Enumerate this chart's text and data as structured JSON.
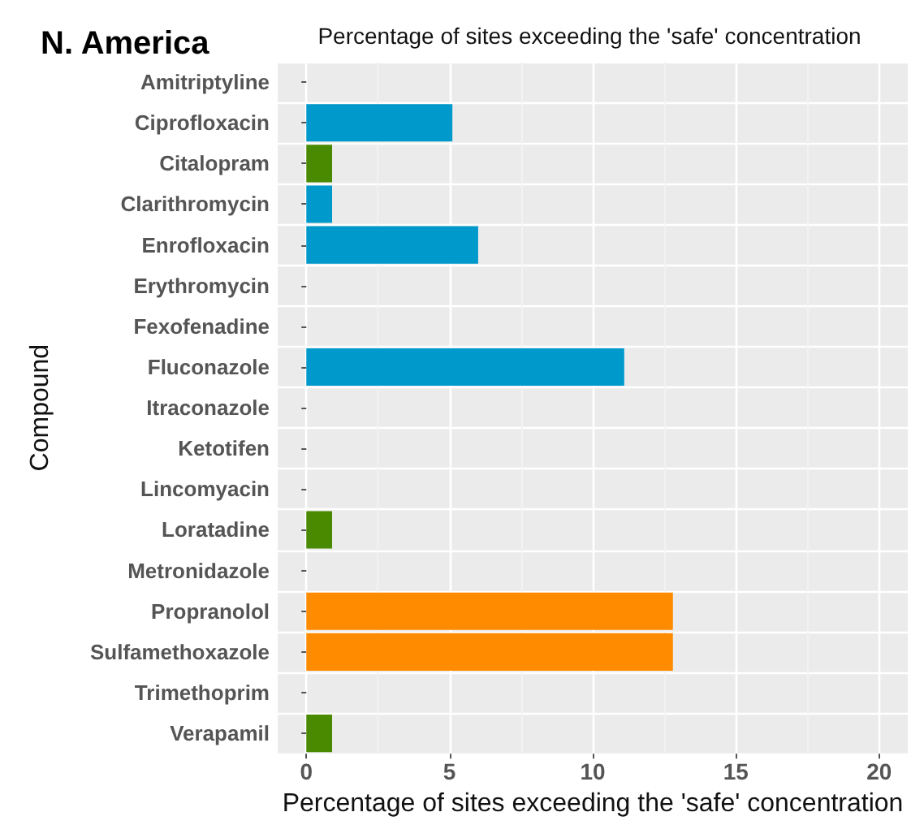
{
  "chart_data": {
    "type": "bar",
    "orientation": "horizontal",
    "title": "N. America",
    "subtitle": "Percentage of sites exceeding the 'safe' concentration",
    "xlabel": "Percentage of sites exceeding the 'safe' concentration",
    "ylabel": "Compound",
    "categories": [
      "Amitriptyline",
      "Ciprofloxacin",
      "Citalopram",
      "Clarithromycin",
      "Enrofloxacin",
      "Erythromycin",
      "Fexofenadine",
      "Fluconazole",
      "Itraconazole",
      "Ketotifen",
      "Lincomyacin",
      "Loratadine",
      "Metronidazole",
      "Propranolol",
      "Sulfamethoxazole",
      "Trimethoprim",
      "Verapamil"
    ],
    "values": [
      0,
      5.1,
      0.9,
      0.9,
      6.0,
      0,
      0,
      11.1,
      0,
      0,
      0,
      0.9,
      0,
      12.8,
      12.8,
      0,
      0.9
    ],
    "colors": [
      "#0099cc",
      "#0099cc",
      "#4a8a00",
      "#0099cc",
      "#0099cc",
      "#0099cc",
      "#4a8a00",
      "#0099cc",
      "#0099cc",
      "#4a8a00",
      "#0099cc",
      "#4a8a00",
      "#0099cc",
      "#ff8c00",
      "#ff8c00",
      "#0099cc",
      "#4a8a00"
    ],
    "xlim": [
      -1,
      21
    ],
    "xticks": [
      0,
      5,
      10,
      15,
      20
    ],
    "grid": true
  }
}
